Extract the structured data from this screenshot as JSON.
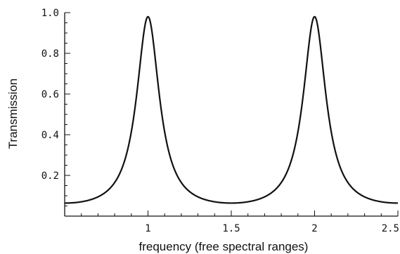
{
  "chart_data": {
    "type": "line",
    "title": "",
    "xlabel": "frequency (free spectral ranges)",
    "ylabel": "Transmission",
    "xlim": [
      0.5,
      2.5
    ],
    "ylim": [
      0,
      1.0
    ],
    "x_ticks": [
      1,
      1.5,
      2,
      2.5
    ],
    "x_tick_labels": [
      "1",
      "1.5",
      "2",
      "2.5"
    ],
    "y_ticks": [
      0.2,
      0.4,
      0.6,
      0.8,
      1.0
    ],
    "y_tick_labels": [
      "0.2",
      "0.4",
      "0.6",
      "0.8",
      "1.0"
    ],
    "grid": false,
    "legend": "none",
    "series": [
      {
        "x": [
          0.5,
          0.6,
          0.7,
          0.8,
          0.85,
          0.9,
          0.93,
          0.95,
          0.97,
          0.98,
          0.99,
          1.0,
          1.01,
          1.02,
          1.03,
          1.05,
          1.07,
          1.1,
          1.15,
          1.2,
          1.3,
          1.4,
          1.5,
          1.6,
          1.7,
          1.8,
          1.85,
          1.9,
          1.93,
          1.95,
          1.97,
          1.98,
          1.99,
          2.0,
          2.01,
          2.02,
          2.03,
          2.05,
          2.07,
          2.1,
          2.15,
          2.2,
          2.3,
          2.4,
          2.5
        ],
        "y": [
          0.003,
          0.007,
          0.016,
          0.043,
          0.07,
          0.14,
          0.24,
          0.37,
          0.6,
          0.77,
          0.93,
          0.98,
          0.93,
          0.77,
          0.6,
          0.37,
          0.24,
          0.14,
          0.07,
          0.043,
          0.016,
          0.007,
          0.003,
          0.007,
          0.016,
          0.043,
          0.07,
          0.14,
          0.24,
          0.37,
          0.6,
          0.77,
          0.93,
          0.98,
          0.93,
          0.77,
          0.6,
          0.37,
          0.24,
          0.14,
          0.07,
          0.043,
          0.016,
          0.007,
          0.003
        ]
      }
    ]
  }
}
